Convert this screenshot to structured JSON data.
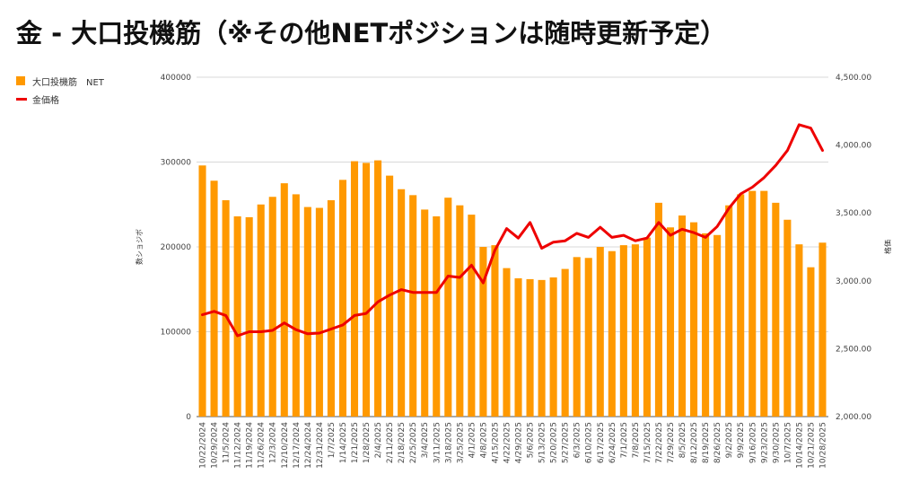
{
  "title": "金 - 大口投機筋（※その他NETポジションは随時更新予定）",
  "colors": {
    "bar": "#FF9900",
    "line": "#EE0000",
    "grid": "#D9D9D9"
  },
  "chart_data": {
    "type": "bar",
    "title": "金 - 大口投機筋（※その他NETポジションは随時更新予定）",
    "legend_position": "top-left",
    "grid": true,
    "categories": [
      "10/22/2024",
      "10/29/2024",
      "11/5/2024",
      "11/12/2024",
      "11/19/2024",
      "11/26/2024",
      "12/3/2024",
      "12/10/2024",
      "12/17/2024",
      "12/24/2024",
      "12/31/2024",
      "1/7/2025",
      "1/14/2025",
      "1/21/2025",
      "1/28/2025",
      "2/4/2025",
      "2/11/2025",
      "2/18/2025",
      "2/25/2025",
      "3/4/2025",
      "3/11/2025",
      "3/18/2025",
      "3/25/2025",
      "4/1/2025",
      "4/8/2025",
      "4/15/2025",
      "4/22/2025",
      "4/29/2025",
      "5/6/2025",
      "5/13/2025",
      "5/20/2025",
      "5/27/2025",
      "6/3/2025",
      "6/10/2025",
      "6/17/2025",
      "6/24/2025",
      "7/1/2025",
      "7/8/2025",
      "7/15/2025",
      "7/22/2025",
      "7/29/2025",
      "8/5/2025",
      "8/12/2025",
      "8/19/2025",
      "8/26/2025",
      "9/2/2025",
      "9/9/2025",
      "9/16/2025",
      "9/23/2025",
      "9/30/2025",
      "10/7/2025",
      "10/14/2025",
      "10/21/2025",
      "10/28/2025"
    ],
    "series": [
      {
        "name": "大口投機筋　NET",
        "type": "bar",
        "axis": "left",
        "values": [
          296000,
          278000,
          255000,
          236000,
          235000,
          250000,
          259000,
          275000,
          262000,
          247000,
          246000,
          255000,
          279000,
          301000,
          299000,
          302000,
          284000,
          268000,
          261000,
          244000,
          236000,
          258000,
          249000,
          238000,
          200000,
          202000,
          175000,
          163000,
          162000,
          161000,
          164000,
          174000,
          188000,
          187000,
          200000,
          195000,
          202000,
          203000,
          211000,
          252000,
          223000,
          237000,
          229000,
          216000,
          214000,
          249000,
          262000,
          266000,
          266000,
          252000,
          232000,
          203000,
          176000,
          205000
        ]
      },
      {
        "name": "金価格",
        "type": "line",
        "axis": "right",
        "values": [
          2750,
          2775,
          2745,
          2595,
          2625,
          2625,
          2635,
          2690,
          2640,
          2610,
          2615,
          2645,
          2675,
          2745,
          2760,
          2845,
          2895,
          2935,
          2915,
          2915,
          2915,
          3035,
          3025,
          3115,
          2985,
          3225,
          3385,
          3315,
          3430,
          3240,
          3285,
          3295,
          3350,
          3320,
          3395,
          3320,
          3335,
          3295,
          3315,
          3430,
          3335,
          3380,
          3355,
          3320,
          3400,
          3535,
          3640,
          3690,
          3760,
          3850,
          3960,
          4150,
          4125,
          3960
        ]
      }
    ],
    "y_left": {
      "label": "数ショジボ",
      "min": 0,
      "max": 400000,
      "ticks": [
        "0",
        "100000",
        "200000",
        "300000",
        "400000"
      ]
    },
    "y_right": {
      "label": "格価",
      "min": 2000,
      "max": 4500,
      "ticks": [
        "2,000.00",
        "2,500.00",
        "3,000.00",
        "3,500.00",
        "4,000.00",
        "4,500.00"
      ]
    }
  }
}
